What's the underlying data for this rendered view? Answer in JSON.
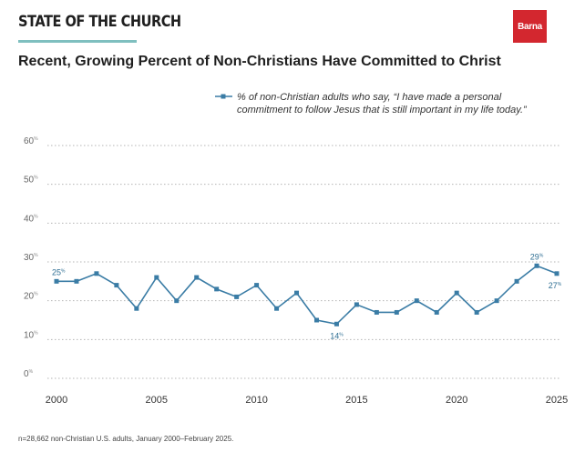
{
  "header": {
    "brand": "STATE OF THE CHURCH",
    "logo": "Barna",
    "title": "Recent, Growing Percent of Non-Christians Have Committed to Christ"
  },
  "footnote": "n=28,662 non-Christian U.S. adults, January 2000–February 2025.",
  "colors": {
    "line": "#3a7ca5",
    "label": "#2e6e93",
    "accent": "#7fbfbf",
    "logo": "#d3272f"
  },
  "chart_data": {
    "type": "line",
    "title": "Recent, Growing Percent of Non-Christians Have Committed to Christ",
    "xlabel": "",
    "ylabel": "",
    "xlim": [
      2000,
      2025
    ],
    "ylim": [
      0,
      60
    ],
    "x_ticks": [
      2000,
      2005,
      2010,
      2015,
      2020,
      2025
    ],
    "y_ticks": [
      0,
      10,
      20,
      30,
      40,
      50,
      60
    ],
    "y_tick_suffix": "%",
    "grid": "horizontal dotted",
    "legend_position": "top-right",
    "series": [
      {
        "name": "% of non-Christian adults who say, “I have made a personal commitment to follow Jesus that is still important in my life today.”",
        "legend_lines": [
          "% of non-Christian adults who say, “I have made a personal",
          "commitment to follow Jesus that is still important in my life today.”"
        ],
        "x": [
          2000,
          2001,
          2002,
          2003,
          2004,
          2005,
          2006,
          2007,
          2008,
          2009,
          2010,
          2011,
          2012,
          2013,
          2014,
          2015,
          2016,
          2017,
          2018,
          2019,
          2020,
          2021,
          2022,
          2023,
          2024,
          2025
        ],
        "values": [
          25,
          25,
          27,
          24,
          18,
          26,
          20,
          26,
          23,
          21,
          24,
          18,
          22,
          15,
          14,
          19,
          17,
          17,
          20,
          17,
          22,
          17,
          20,
          25,
          29,
          27
        ]
      }
    ],
    "annotations": [
      {
        "x": 2000,
        "label": "25",
        "suffix": "%",
        "pos": "above"
      },
      {
        "x": 2014,
        "label": "14",
        "suffix": "%",
        "pos": "below"
      },
      {
        "x": 2024,
        "label": "29",
        "suffix": "%",
        "pos": "above"
      },
      {
        "x": 2025,
        "label": "27",
        "suffix": "%",
        "pos": "below"
      }
    ]
  }
}
